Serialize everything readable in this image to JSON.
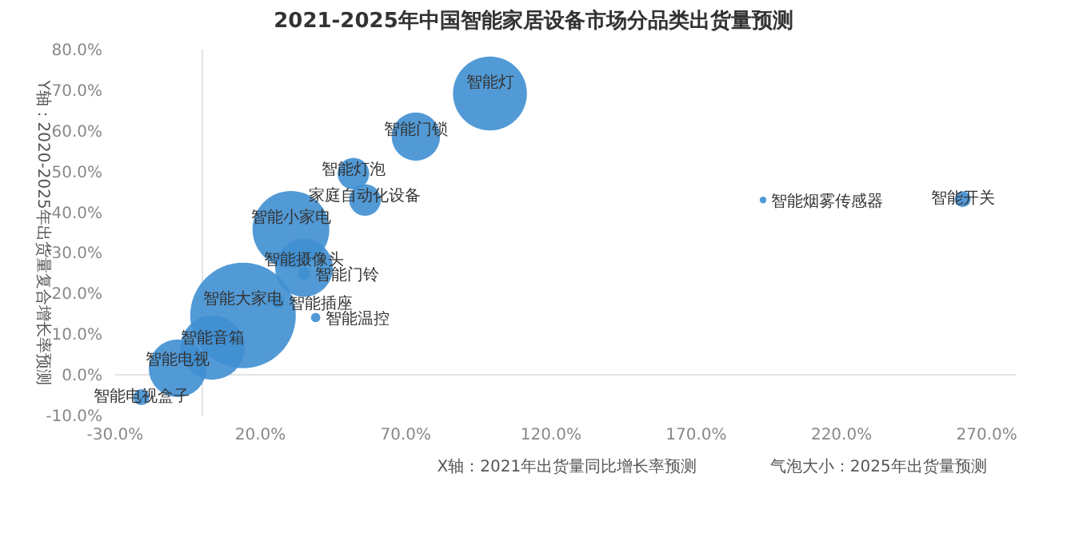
{
  "chart_data": {
    "type": "bubble",
    "title": "2021-2025年中国智能家居设备市场分品类出货量预测",
    "xlabel": "X轴：2021年出货量同比增长率预测",
    "ylabel": "Y轴：2020-2025年出货量复合增长率预测",
    "series": [
      {
        "color": "#3f8fd2",
        "x": [
          99,
          73.5,
          52,
          56,
          30.5,
          35,
          35,
          26,
          39,
          14,
          3.5,
          -8.5,
          -21,
          193,
          261.7
        ],
        "values": [
          69.2,
          58.6,
          49.5,
          43,
          35.8,
          26.3,
          24.9,
          18,
          14.1,
          14.6,
          6.7,
          1.6,
          -5.5,
          43,
          43.2
        ],
        "sizes": [
          0.49,
          0.21,
          0.09,
          0.09,
          0.53,
          0.3,
          0.015,
          0.015,
          0.008,
          1,
          0.37,
          0.3,
          0.023,
          0.004,
          0.023
        ]
      }
    ],
    "annotations": [
      {
        "text": "智能灯",
        "x": 99,
        "y": 69.2
      },
      {
        "text": "智能门锁",
        "x": 73.5,
        "y": 58.6
      },
      {
        "text": "智能灯泡",
        "x": 52,
        "y": 49.5
      },
      {
        "text": "家庭自动化设备",
        "x": 56,
        "y": 43
      },
      {
        "text": "智能小家电",
        "x": 30.5,
        "y": 35.8
      },
      {
        "text": "智能摄像头",
        "x": 35,
        "y": 26.3
      },
      {
        "text": "智能门铃",
        "x": 35,
        "y": 24.9
      },
      {
        "text": "智能插座",
        "x": 26,
        "y": 18
      },
      {
        "text": "智能温控",
        "x": 39,
        "y": 14.1
      },
      {
        "text": "智能大家电",
        "x": 14,
        "y": 14.6
      },
      {
        "text": "智能音箱",
        "x": 3.5,
        "y": 6.7
      },
      {
        "text": "智能电视",
        "x": -8.5,
        "y": 1.6
      },
      {
        "text": "智能电视盒子",
        "x": -21,
        "y": -5.5
      },
      {
        "text": "智能烟雾传感器",
        "x": 193,
        "y": 43
      },
      {
        "text": "智能开关",
        "x": 261.7,
        "y": 43.2
      },
      "气泡大小：2025年出货量预测"
    ],
    "xlim": [
      -30,
      280
    ],
    "ylim": [
      -10,
      80
    ],
    "xticks": [
      {
        "value": -30,
        "label": "-30.0%"
      },
      {
        "value": 20,
        "label": "20.0%"
      },
      {
        "value": 70,
        "label": "70.0%"
      },
      {
        "value": 120,
        "label": "120.0%"
      },
      {
        "value": 170,
        "label": "170.0%"
      },
      {
        "value": 220,
        "label": "220.0%"
      },
      {
        "value": 270,
        "label": "270.0%"
      }
    ],
    "yticks": [
      {
        "value": -10,
        "label": "-10.0%"
      },
      {
        "value": 0,
        "label": "0.0%"
      },
      {
        "value": 10,
        "label": "10.0%"
      },
      {
        "value": 20,
        "label": "20.0%"
      },
      {
        "value": 30,
        "label": "30.0%"
      },
      {
        "value": 40,
        "label": "40.0%"
      },
      {
        "value": 50,
        "label": "50.0%"
      },
      {
        "value": 60,
        "label": "60.0%"
      },
      {
        "value": 70,
        "label": "70.0%"
      },
      {
        "value": 80,
        "label": "80.0%"
      }
    ]
  }
}
